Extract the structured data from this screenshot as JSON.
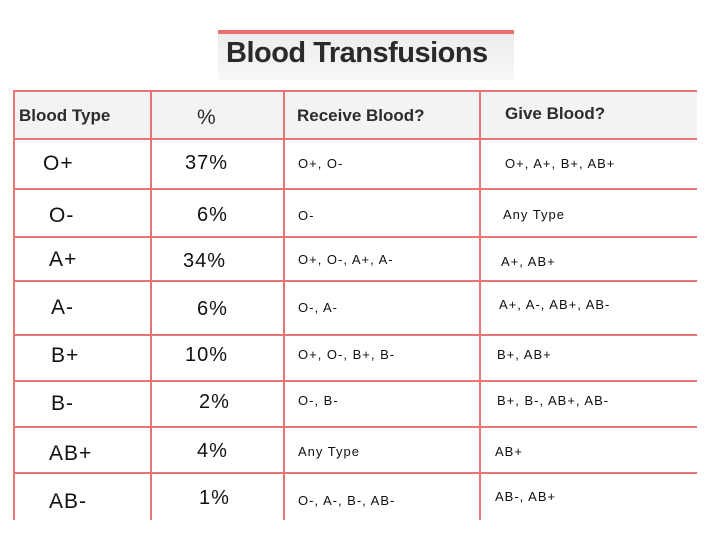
{
  "title": "Blood Transfusions",
  "table": {
    "headers": [
      "Blood Type",
      "%",
      "Receive Blood?",
      "Give Blood?"
    ],
    "rows": [
      {
        "type": "O+",
        "pct": "37%",
        "receive": "O+, O-",
        "give": "O+, A+, B+, AB+"
      },
      {
        "type": "O-",
        "pct": "6%",
        "receive": "O-",
        "give": "Any Type"
      },
      {
        "type": "A+",
        "pct": "34%",
        "receive": "O+, O-, A+, A-",
        "give": "A+, AB+"
      },
      {
        "type": "A-",
        "pct": "6%",
        "receive": "O-, A-",
        "give": "A+, A-, AB+, AB-"
      },
      {
        "type": "B+",
        "pct": "10%",
        "receive": "O+, O-, B+, B-",
        "give": "B+, AB+"
      },
      {
        "type": "B-",
        "pct": "2%",
        "receive": "O-, B-",
        "give": "B+, B-, AB+, AB-"
      },
      {
        "type": "AB+",
        "pct": "4%",
        "receive": "Any Type",
        "give": "AB+"
      },
      {
        "type": "AB-",
        "pct": "1%",
        "receive": "O-, A-, B-, AB-",
        "give": "AB-, AB+"
      }
    ]
  },
  "colors": {
    "grid_line": "#e14848",
    "text": "#111111",
    "header_bg": "#f3f3f3"
  }
}
